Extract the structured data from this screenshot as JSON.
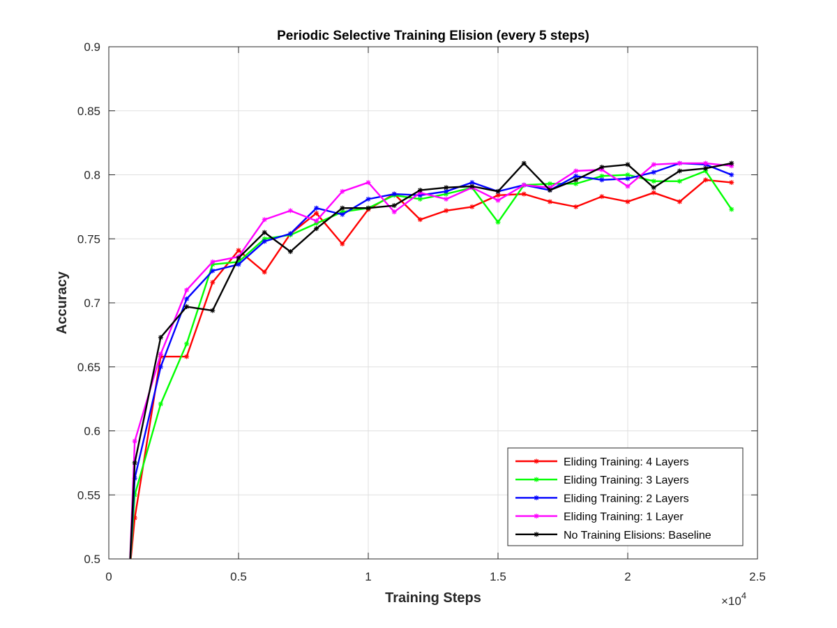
{
  "chart_data": {
    "type": "line",
    "title": "Periodic Selective Training Elision (every 5 steps)",
    "xlabel": "Training Steps",
    "ylabel": "Accuracy",
    "x_multiplier_base": "×10",
    "x_multiplier_exp": "4",
    "xlim": [
      0,
      2.5
    ],
    "ylim": [
      0.5,
      0.9
    ],
    "xticks": [
      0,
      0.5,
      1,
      1.5,
      2,
      2.5
    ],
    "xtick_labels": [
      "0",
      "0.5",
      "1",
      "1.5",
      "2",
      "2.5"
    ],
    "yticks": [
      0.5,
      0.55,
      0.6,
      0.65,
      0.7,
      0.75,
      0.8,
      0.85,
      0.9
    ],
    "ytick_labels": [
      "0.5",
      "0.55",
      "0.6",
      "0.65",
      "0.7",
      "0.75",
      "0.8",
      "0.85",
      "0.9"
    ],
    "grid": true,
    "legend_position": "bottom-right",
    "x": [
      0.08,
      0.1,
      0.2,
      0.3,
      0.4,
      0.5,
      0.6,
      0.7,
      0.8,
      0.9,
      1.0,
      1.1,
      1.2,
      1.3,
      1.4,
      1.5,
      1.6,
      1.7,
      1.8,
      1.9,
      2.0,
      2.1,
      2.2,
      2.3,
      2.4
    ],
    "series": [
      {
        "name": "Eliding Training: 4 Layers",
        "color": "#ff0000",
        "values": [
          0.49,
          0.532,
          0.658,
          0.658,
          0.716,
          0.741,
          0.724,
          0.754,
          0.77,
          0.746,
          0.773,
          0.785,
          0.765,
          0.772,
          0.775,
          0.784,
          0.785,
          0.779,
          0.775,
          0.783,
          0.779,
          0.786,
          0.779,
          0.796,
          0.794
        ]
      },
      {
        "name": "Eliding Training: 3 Layers",
        "color": "#00ff00",
        "values": [
          0.49,
          0.55,
          0.621,
          0.668,
          0.73,
          0.732,
          0.75,
          0.753,
          0.762,
          0.771,
          0.774,
          0.784,
          0.781,
          0.785,
          0.79,
          0.763,
          0.792,
          0.793,
          0.793,
          0.799,
          0.8,
          0.795,
          0.795,
          0.803,
          0.773
        ]
      },
      {
        "name": "Eliding Training: 2 Layers",
        "color": "#0000ff",
        "values": [
          0.49,
          0.563,
          0.65,
          0.703,
          0.725,
          0.73,
          0.748,
          0.754,
          0.774,
          0.769,
          0.781,
          0.785,
          0.784,
          0.787,
          0.794,
          0.787,
          0.792,
          0.788,
          0.799,
          0.796,
          0.797,
          0.802,
          0.809,
          0.808,
          0.8
        ]
      },
      {
        "name": "Eliding Training: 1 Layer",
        "color": "#ff00ff",
        "values": [
          0.49,
          0.592,
          0.66,
          0.71,
          0.732,
          0.736,
          0.765,
          0.772,
          0.764,
          0.787,
          0.794,
          0.771,
          0.786,
          0.781,
          0.79,
          0.78,
          0.792,
          0.79,
          0.803,
          0.804,
          0.791,
          0.808,
          0.809,
          0.809,
          0.807
        ]
      },
      {
        "name": "No Training Elisions: Baseline",
        "color": "#000000",
        "values": [
          0.49,
          0.575,
          0.673,
          0.697,
          0.694,
          0.735,
          0.755,
          0.74,
          0.758,
          0.774,
          0.774,
          0.776,
          0.788,
          0.79,
          0.791,
          0.787,
          0.809,
          0.788,
          0.796,
          0.806,
          0.808,
          0.79,
          0.803,
          0.805,
          0.809
        ]
      }
    ]
  }
}
